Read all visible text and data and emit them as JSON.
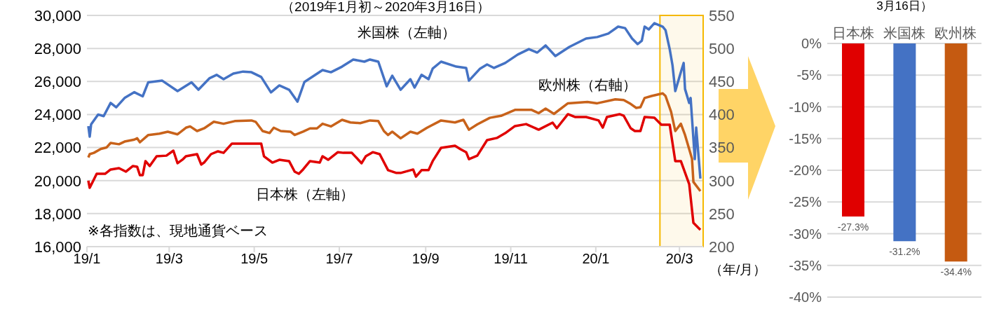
{
  "chart_data": [
    {
      "type": "line",
      "title": "（2019年1月初～2020年3月16日）",
      "xlabel": "（年/月）",
      "annotations": [
        "※各指数は、現地通貨ベース"
      ],
      "xlim": [
        "2019-01-01",
        "2020-03-18"
      ],
      "xticks": [
        {
          "value": "2019-01-01",
          "label": "19/1"
        },
        {
          "value": "2019-03-01",
          "label": "19/3"
        },
        {
          "value": "2019-05-01",
          "label": "19/5"
        },
        {
          "value": "2019-07-01",
          "label": "19/7"
        },
        {
          "value": "2019-09-01",
          "label": "19/9"
        },
        {
          "value": "2019-11-01",
          "label": "19/11"
        },
        {
          "value": "2020-01-01",
          "label": "20/1"
        },
        {
          "value": "2020-03-01",
          "label": "20/3"
        }
      ],
      "ylim": [
        16000,
        30000
      ],
      "yticks": [
        {
          "value": 16000,
          "label": "16,000"
        },
        {
          "value": 18000,
          "label": "18,000"
        },
        {
          "value": 20000,
          "label": "20,000"
        },
        {
          "value": 22000,
          "label": "22,000"
        },
        {
          "value": 24000,
          "label": "24,000"
        },
        {
          "value": 26000,
          "label": "26,000"
        },
        {
          "value": 28000,
          "label": "28,000"
        },
        {
          "value": 30000,
          "label": "30,000"
        }
      ],
      "y2lim": [
        200,
        550
      ],
      "y2ticks": [
        200,
        250,
        300,
        350,
        400,
        450,
        500,
        550
      ],
      "grid": "y",
      "bands": [
        {
          "axis": "x",
          "from": "2020-02-16",
          "to": "2020-03-18",
          "color": "#f5b800"
        }
      ],
      "series": [
        {
          "name": "米国株（左軸）",
          "color": "#4472c4",
          "x": [
            "2019-01-02",
            "2019-01-03",
            "2019-01-04",
            "2019-01-09",
            "2019-01-13",
            "2019-01-18",
            "2019-01-22",
            "2019-01-28",
            "2019-02-04",
            "2019-02-10",
            "2019-02-14",
            "2019-02-24",
            "2019-03-07",
            "2019-03-17",
            "2019-03-22",
            "2019-03-30",
            "2019-04-04",
            "2019-04-09",
            "2019-04-16",
            "2019-04-23",
            "2019-04-29",
            "2019-05-06",
            "2019-05-13",
            "2019-05-19",
            "2019-05-26",
            "2019-06-01",
            "2019-06-06",
            "2019-06-19",
            "2019-06-25",
            "2019-07-03",
            "2019-07-11",
            "2019-07-19",
            "2019-07-23",
            "2019-07-29",
            "2019-08-04",
            "2019-08-08",
            "2019-08-14",
            "2019-08-21",
            "2019-08-24",
            "2019-08-29",
            "2019-09-03",
            "2019-09-06",
            "2019-09-12",
            "2019-09-23",
            "2019-09-30",
            "2019-10-02",
            "2019-10-10",
            "2019-10-15",
            "2019-10-20",
            "2019-10-28",
            "2019-11-06",
            "2019-11-14",
            "2019-11-20",
            "2019-11-26",
            "2019-12-03",
            "2019-12-13",
            "2019-12-25",
            "2020-01-02",
            "2020-01-10",
            "2020-01-17",
            "2020-01-22",
            "2020-01-27",
            "2020-01-31",
            "2020-02-03",
            "2020-02-05",
            "2020-02-08",
            "2020-02-12",
            "2020-02-18",
            "2020-02-20",
            "2020-02-23",
            "2020-02-25",
            "2020-02-27",
            "2020-03-02",
            "2020-03-04",
            "2020-03-05",
            "2020-03-08",
            "2020-03-09",
            "2020-03-12",
            "2020-03-13",
            "2020-03-16"
          ],
          "values": [
            23300,
            22660,
            23400,
            24000,
            23900,
            24700,
            24440,
            25000,
            25350,
            25100,
            25950,
            26050,
            25420,
            25950,
            25500,
            26200,
            26400,
            26140,
            26480,
            26600,
            26560,
            26270,
            25340,
            25760,
            25500,
            24780,
            25970,
            26690,
            26560,
            26900,
            27330,
            27200,
            27330,
            27200,
            25710,
            26350,
            25500,
            26140,
            25630,
            26400,
            26140,
            26780,
            27200,
            26900,
            26820,
            26050,
            26780,
            27030,
            26820,
            27120,
            27630,
            27960,
            27750,
            28180,
            27540,
            28090,
            28600,
            28690,
            28900,
            29320,
            29230,
            28600,
            28260,
            28470,
            29320,
            29150,
            29530,
            29320,
            29110,
            27960,
            26990,
            25420,
            26560,
            27120,
            25540,
            24700,
            25000,
            21300,
            23210,
            20120
          ]
        },
        {
          "name": "日本株（左軸）",
          "color": "#e00000",
          "x": [
            "2019-01-02",
            "2019-01-03",
            "2019-01-08",
            "2019-01-14",
            "2019-01-18",
            "2019-01-24",
            "2019-01-29",
            "2019-02-03",
            "2019-02-06",
            "2019-02-08",
            "2019-02-10",
            "2019-02-12",
            "2019-02-15",
            "2019-02-20",
            "2019-02-27",
            "2019-03-04",
            "2019-03-07",
            "2019-03-11",
            "2019-03-13",
            "2019-03-21",
            "2019-03-24",
            "2019-03-26",
            "2019-03-31",
            "2019-04-05",
            "2019-04-09",
            "2019-04-15",
            "2019-04-22",
            "2019-05-06",
            "2019-05-08",
            "2019-05-14",
            "2019-05-19",
            "2019-05-26",
            "2019-05-30",
            "2019-06-02",
            "2019-06-05",
            "2019-06-10",
            "2019-06-17",
            "2019-06-19",
            "2019-06-23",
            "2019-06-30",
            "2019-07-04",
            "2019-07-10",
            "2019-07-17",
            "2019-07-20",
            "2019-07-25",
            "2019-07-30",
            "2019-08-05",
            "2019-08-11",
            "2019-08-14",
            "2019-08-23",
            "2019-08-25",
            "2019-08-29",
            "2019-09-03",
            "2019-09-06",
            "2019-09-12",
            "2019-09-22",
            "2019-09-26",
            "2019-09-30",
            "2019-10-02",
            "2019-10-08",
            "2019-10-15",
            "2019-10-22",
            "2019-10-28",
            "2019-11-04",
            "2019-11-12",
            "2019-11-21",
            "2019-12-01",
            "2019-12-04",
            "2019-12-12",
            "2019-12-17",
            "2019-12-25",
            "2020-01-03",
            "2020-01-06",
            "2020-01-09",
            "2020-01-18",
            "2020-01-21",
            "2020-01-26",
            "2020-01-29",
            "2020-02-02",
            "2020-02-05",
            "2020-02-12",
            "2020-02-17",
            "2020-02-23",
            "2020-02-27",
            "2020-03-02",
            "2020-03-08",
            "2020-03-11",
            "2020-03-16"
          ],
          "values": [
            19990,
            19560,
            20410,
            20410,
            20670,
            20750,
            20540,
            20880,
            20840,
            20330,
            20330,
            21180,
            20880,
            21470,
            21510,
            21810,
            21050,
            21300,
            21470,
            21600,
            20970,
            21090,
            21600,
            21770,
            21680,
            22240,
            22240,
            22240,
            21470,
            21090,
            21260,
            21180,
            20540,
            20410,
            20670,
            21180,
            21090,
            21470,
            21260,
            21720,
            21680,
            21680,
            21050,
            21470,
            21720,
            21600,
            20630,
            20460,
            20460,
            20670,
            20240,
            20630,
            20630,
            21180,
            21980,
            22110,
            21900,
            21720,
            21300,
            21510,
            22450,
            22580,
            22870,
            23300,
            23420,
            23080,
            23510,
            23170,
            24020,
            23850,
            23850,
            23640,
            23210,
            23850,
            24020,
            23930,
            23170,
            23000,
            23000,
            23850,
            23810,
            23380,
            23380,
            21180,
            21180,
            19780,
            17440,
            17020
          ]
        },
        {
          "name": "欧州株（右軸）",
          "color": "#c8621a",
          "axis": "y2",
          "x": [
            "2019-01-02",
            "2019-01-03",
            "2019-01-06",
            "2019-01-11",
            "2019-01-15",
            "2019-01-18",
            "2019-01-24",
            "2019-01-28",
            "2019-02-04",
            "2019-02-06",
            "2019-02-08",
            "2019-02-14",
            "2019-02-22",
            "2019-02-28",
            "2019-03-07",
            "2019-03-13",
            "2019-03-16",
            "2019-03-21",
            "2019-03-26",
            "2019-04-02",
            "2019-04-09",
            "2019-04-17",
            "2019-04-29",
            "2019-05-02",
            "2019-05-07",
            "2019-05-12",
            "2019-05-15",
            "2019-05-20",
            "2019-05-27",
            "2019-05-30",
            "2019-06-05",
            "2019-06-10",
            "2019-06-15",
            "2019-06-19",
            "2019-06-25",
            "2019-07-03",
            "2019-07-09",
            "2019-07-16",
            "2019-07-23",
            "2019-07-29",
            "2019-08-02",
            "2019-08-05",
            "2019-08-08",
            "2019-08-14",
            "2019-08-21",
            "2019-08-26",
            "2019-09-02",
            "2019-09-12",
            "2019-09-22",
            "2019-09-28",
            "2019-10-02",
            "2019-10-08",
            "2019-10-17",
            "2019-10-25",
            "2019-11-04",
            "2019-11-16",
            "2019-11-21",
            "2019-11-26",
            "2019-12-02",
            "2019-12-12",
            "2019-12-26",
            "2020-01-02",
            "2020-01-15",
            "2020-01-21",
            "2020-01-26",
            "2020-01-30",
            "2020-02-02",
            "2020-02-05",
            "2020-02-10",
            "2020-02-18",
            "2020-02-20",
            "2020-02-24",
            "2020-02-27",
            "2020-03-02",
            "2020-03-05",
            "2020-03-10",
            "2020-03-11",
            "2020-03-16"
          ],
          "values": [
            335,
            340,
            342,
            348,
            350,
            357,
            355,
            359,
            362,
            364,
            358,
            369,
            371,
            374,
            370,
            380,
            382,
            375,
            379,
            389,
            386,
            390,
            391,
            389,
            375,
            372,
            380,
            375,
            374,
            369,
            374,
            379,
            379,
            386,
            382,
            392,
            388,
            387,
            391,
            390,
            375,
            369,
            374,
            364,
            374,
            371,
            380,
            391,
            388,
            392,
            377,
            385,
            395,
            398,
            407,
            407,
            402,
            409,
            401,
            417,
            419,
            417,
            423,
            422,
            416,
            410,
            411,
            425,
            428,
            432,
            428,
            404,
            375,
            386,
            369,
            333,
            298,
            284
          ]
        }
      ]
    },
    {
      "type": "bar",
      "title": "3月16日）",
      "categories": [
        "日本株",
        "米国株",
        "欧州株"
      ],
      "values": [
        -27.3,
        -31.2,
        -34.4
      ],
      "colors": [
        "#e00000",
        "#4472c4",
        "#c55a11"
      ],
      "value_labels": [
        "-27.3%",
        "-31.2%",
        "-34.4%"
      ],
      "ylim": [
        -40,
        0
      ],
      "yticks": [
        {
          "value": 0,
          "label": "0%"
        },
        {
          "value": -5,
          "label": "-5%"
        },
        {
          "value": -10,
          "label": "-10%"
        },
        {
          "value": -15,
          "label": "-15%"
        },
        {
          "value": -20,
          "label": "-20%"
        },
        {
          "value": -25,
          "label": "-25%"
        },
        {
          "value": -30,
          "label": "-30%"
        },
        {
          "value": -35,
          "label": "-35%"
        },
        {
          "value": -40,
          "label": "-40%"
        }
      ],
      "grid": "y"
    }
  ]
}
